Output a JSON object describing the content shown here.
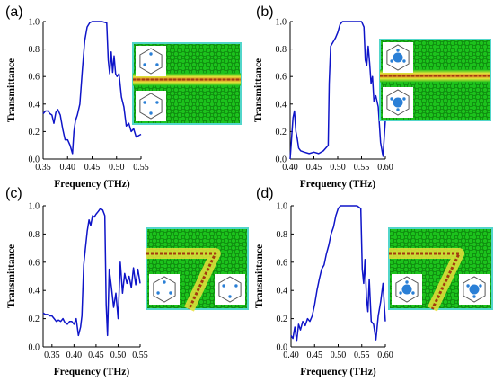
{
  "colors": {
    "curve": "#0e14c8",
    "inset_green": "#1cc21c",
    "inset_border": "#52d6ca",
    "waveguide_core": "#c8621a",
    "waveguide_glow": "#e8e23a",
    "unit_cell_dot": "#2a7fd6"
  },
  "chart_data": [
    {
      "type": "line",
      "panel_label": "(a)",
      "xlabel": "Frequency (THz)",
      "ylabel": "Transmittance",
      "xlim": [
        0.35,
        0.55
      ],
      "ylim": [
        0,
        1.0
      ],
      "xticks": [
        "0.35",
        "0.40",
        "0.45",
        "0.50",
        "0.55"
      ],
      "yticks": [
        "0.0",
        "0.2",
        "0.4",
        "0.6",
        "0.8",
        "1.0"
      ],
      "grid": false,
      "inset": {
        "waveguide": "straight",
        "unit_cells": [
          "small-hole",
          "small-hole"
        ]
      },
      "series": [
        {
          "x": [
            0.35,
            0.355,
            0.36,
            0.364,
            0.368,
            0.372,
            0.376,
            0.38,
            0.385,
            0.39,
            0.395,
            0.4,
            0.405,
            0.41,
            0.413,
            0.416,
            0.42,
            0.425,
            0.43,
            0.435,
            0.44,
            0.445,
            0.45,
            0.46,
            0.47,
            0.48,
            0.483,
            0.486,
            0.489,
            0.492,
            0.495,
            0.498,
            0.501,
            0.505,
            0.51,
            0.515,
            0.52,
            0.525,
            0.53,
            0.535,
            0.54,
            0.545,
            0.55
          ],
          "y": [
            0.33,
            0.35,
            0.35,
            0.33,
            0.32,
            0.26,
            0.34,
            0.36,
            0.32,
            0.22,
            0.14,
            0.14,
            0.1,
            0.04,
            0.2,
            0.28,
            0.32,
            0.4,
            0.64,
            0.86,
            0.96,
            0.99,
            1.0,
            1.0,
            1.0,
            0.99,
            0.72,
            0.62,
            0.78,
            0.63,
            0.75,
            0.62,
            0.6,
            0.62,
            0.45,
            0.38,
            0.24,
            0.26,
            0.2,
            0.22,
            0.16,
            0.17,
            0.18
          ]
        }
      ]
    },
    {
      "type": "line",
      "panel_label": "(b)",
      "xlabel": "Frequency (THz)",
      "ylabel": "Transmittance",
      "xlim": [
        0.4,
        0.6
      ],
      "ylim": [
        0,
        1.0
      ],
      "xticks": [
        "0.40",
        "0.45",
        "0.50",
        "0.55",
        "0.60"
      ],
      "yticks": [
        "0.0",
        "0.2",
        "0.4",
        "0.6",
        "0.8",
        "1.0"
      ],
      "grid": false,
      "inset": {
        "waveguide": "straight",
        "unit_cells": [
          "large-hole",
          "large-hole"
        ]
      },
      "series": [
        {
          "x": [
            0.4,
            0.403,
            0.406,
            0.409,
            0.412,
            0.415,
            0.418,
            0.422,
            0.43,
            0.44,
            0.45,
            0.46,
            0.47,
            0.48,
            0.482,
            0.485,
            0.49,
            0.495,
            0.5,
            0.505,
            0.51,
            0.52,
            0.53,
            0.54,
            0.55,
            0.555,
            0.558,
            0.561,
            0.564,
            0.567,
            0.57,
            0.573,
            0.576,
            0.58,
            0.585,
            0.59,
            0.595,
            0.6
          ],
          "y": [
            0.0,
            0.15,
            0.3,
            0.35,
            0.2,
            0.15,
            0.08,
            0.06,
            0.05,
            0.04,
            0.05,
            0.04,
            0.06,
            0.1,
            0.55,
            0.82,
            0.85,
            0.88,
            0.92,
            0.98,
            1.0,
            1.0,
            1.0,
            1.0,
            1.0,
            0.96,
            0.72,
            0.68,
            0.82,
            0.7,
            0.55,
            0.6,
            0.42,
            0.46,
            0.38,
            0.12,
            0.02,
            0.28
          ]
        }
      ]
    },
    {
      "type": "line",
      "panel_label": "(c)",
      "xlabel": "Frequency (THz)",
      "ylabel": "Transmittance",
      "xlim": [
        0.33,
        0.55
      ],
      "ylim": [
        0,
        1.0
      ],
      "xticks": [
        "0.35",
        "0.40",
        "0.45",
        "0.50",
        "0.55"
      ],
      "yticks": [
        "0.0",
        "0.2",
        "0.4",
        "0.6",
        "0.8",
        "1.0"
      ],
      "grid": false,
      "inset": {
        "waveguide": "bent",
        "unit_cells": [
          "small-hole",
          "small-hole"
        ]
      },
      "series": [
        {
          "x": [
            0.33,
            0.335,
            0.34,
            0.345,
            0.35,
            0.355,
            0.36,
            0.365,
            0.37,
            0.375,
            0.38,
            0.385,
            0.39,
            0.395,
            0.4,
            0.405,
            0.41,
            0.415,
            0.418,
            0.422,
            0.426,
            0.43,
            0.434,
            0.438,
            0.442,
            0.446,
            0.45,
            0.455,
            0.46,
            0.465,
            0.47,
            0.473,
            0.476,
            0.48,
            0.485,
            0.49,
            0.495,
            0.5,
            0.505,
            0.51,
            0.515,
            0.52,
            0.525,
            0.53,
            0.535,
            0.54,
            0.545,
            0.55
          ],
          "y": [
            0.24,
            0.23,
            0.23,
            0.22,
            0.22,
            0.2,
            0.18,
            0.19,
            0.18,
            0.2,
            0.17,
            0.16,
            0.18,
            0.18,
            0.16,
            0.2,
            0.08,
            0.14,
            0.22,
            0.58,
            0.7,
            0.82,
            0.9,
            0.86,
            0.93,
            0.92,
            0.94,
            0.96,
            0.98,
            0.97,
            0.93,
            0.3,
            0.08,
            0.55,
            0.42,
            0.28,
            0.38,
            0.2,
            0.6,
            0.38,
            0.52,
            0.45,
            0.5,
            0.42,
            0.56,
            0.44,
            0.55,
            0.45
          ]
        }
      ]
    },
    {
      "type": "line",
      "panel_label": "(d)",
      "xlabel": "Frequency (THz)",
      "ylabel": "Transmittance",
      "xlim": [
        0.4,
        0.6
      ],
      "ylim": [
        0,
        1.0
      ],
      "xticks": [
        "0.40",
        "0.45",
        "0.50",
        "0.55",
        "0.60"
      ],
      "yticks": [
        "0.0",
        "0.2",
        "0.4",
        "0.6",
        "0.8",
        "1.0"
      ],
      "grid": false,
      "inset": {
        "waveguide": "bent",
        "unit_cells": [
          "large-hole",
          "large-hole"
        ]
      },
      "series": [
        {
          "x": [
            0.4,
            0.404,
            0.408,
            0.412,
            0.416,
            0.42,
            0.425,
            0.43,
            0.435,
            0.44,
            0.445,
            0.45,
            0.455,
            0.46,
            0.465,
            0.47,
            0.475,
            0.48,
            0.485,
            0.49,
            0.495,
            0.5,
            0.505,
            0.51,
            0.52,
            0.53,
            0.54,
            0.548,
            0.551,
            0.554,
            0.557,
            0.56,
            0.563,
            0.566,
            0.57,
            0.575,
            0.58,
            0.585,
            0.59,
            0.595,
            0.6
          ],
          "y": [
            0.08,
            0.06,
            0.14,
            0.04,
            0.16,
            0.12,
            0.18,
            0.15,
            0.2,
            0.18,
            0.22,
            0.3,
            0.4,
            0.48,
            0.55,
            0.58,
            0.66,
            0.72,
            0.8,
            0.85,
            0.93,
            0.98,
            1.0,
            1.0,
            1.0,
            1.0,
            1.0,
            0.98,
            0.55,
            0.45,
            0.62,
            0.35,
            0.25,
            0.48,
            0.18,
            0.16,
            0.05,
            0.22,
            0.32,
            0.45,
            0.18
          ]
        }
      ]
    }
  ]
}
